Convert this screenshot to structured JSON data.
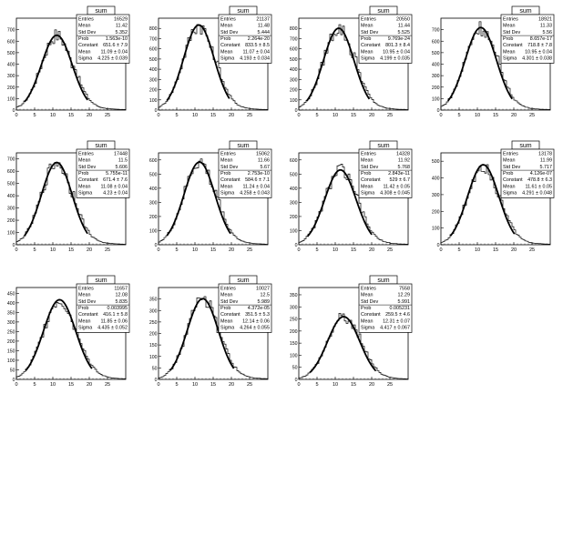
{
  "common": {
    "hist_name": "sum",
    "x_ticks": [
      0,
      5,
      10,
      15,
      20,
      25
    ],
    "stat_labels": [
      "Entries",
      "Mean",
      "Std Dev",
      "Prob",
      "Constant",
      "Mean",
      "Sigma"
    ]
  },
  "chart_data": [
    {
      "type": "bar",
      "title": "sum",
      "xlim": [
        0,
        30
      ],
      "ylim": [
        0,
        800
      ],
      "yticks": [
        0,
        100,
        200,
        300,
        400,
        500,
        600,
        700
      ],
      "fit": {
        "constant": 651.6,
        "mean": 11.09,
        "sigma": 4.225
      },
      "stats": [
        "16529",
        "11.42",
        "5.352",
        "1.563e-10",
        "651.6 ± 7.9",
        "11.09 ± 0.04",
        "4.225 ± 0.039"
      ]
    },
    {
      "type": "bar",
      "title": "sum",
      "xlim": [
        0,
        30
      ],
      "ylim": [
        0,
        900
      ],
      "yticks": [
        0,
        100,
        200,
        300,
        400,
        500,
        600,
        700,
        800
      ],
      "fit": {
        "constant": 833.5,
        "mean": 11.07,
        "sigma": 4.193
      },
      "stats": [
        "21137",
        "11.48",
        "5.444",
        "2.264e-20",
        "833.5 ± 8.5",
        "11.07 ± 0.04",
        "4.193 ± 0.034"
      ]
    },
    {
      "type": "bar",
      "title": "sum",
      "xlim": [
        0,
        30
      ],
      "ylim": [
        0,
        900
      ],
      "yticks": [
        0,
        100,
        200,
        300,
        400,
        500,
        600,
        700,
        800
      ],
      "fit": {
        "constant": 801.3,
        "mean": 10.95,
        "sigma": 4.199
      },
      "stats": [
        "20550",
        "11.44",
        "5.525",
        "9.769e-24",
        "801.3 ± 8.4",
        "10.95 ± 0.04",
        "4.199 ± 0.035"
      ]
    },
    {
      "type": "bar",
      "title": "sum",
      "xlim": [
        0,
        30
      ],
      "ylim": [
        0,
        800
      ],
      "yticks": [
        0,
        100,
        200,
        300,
        400,
        500,
        600,
        700
      ],
      "fit": {
        "constant": 718.8,
        "mean": 10.95,
        "sigma": 4.301
      },
      "stats": [
        "18921",
        "11.33",
        "5.56",
        "8.657e-17",
        "718.8 ± 7.8",
        "10.95 ± 0.04",
        "4.301 ± 0.038"
      ]
    },
    {
      "type": "bar",
      "title": "sum",
      "xlim": [
        0,
        30
      ],
      "ylim": [
        0,
        750
      ],
      "yticks": [
        0,
        100,
        200,
        300,
        400,
        500,
        600,
        700
      ],
      "fit": {
        "constant": 671.4,
        "mean": 11.08,
        "sigma": 4.23
      },
      "stats": [
        "17448",
        "11.5",
        "5.606",
        "5.755e-11",
        "671.4 ± 7.6",
        "11.08 ± 0.04",
        "4.23 ± 0.04"
      ]
    },
    {
      "type": "bar",
      "title": "sum",
      "xlim": [
        0,
        30
      ],
      "ylim": [
        0,
        650
      ],
      "yticks": [
        0,
        100,
        200,
        300,
        400,
        500,
        600
      ],
      "fit": {
        "constant": 584.6,
        "mean": 11.24,
        "sigma": 4.258
      },
      "stats": [
        "15062",
        "11.66",
        "5.67",
        "2.753e-10",
        "584.6 ± 7.1",
        "11.24 ± 0.04",
        "4.258 ± 0.043"
      ]
    },
    {
      "type": "bar",
      "title": "sum",
      "xlim": [
        0,
        30
      ],
      "ylim": [
        0,
        650
      ],
      "yticks": [
        0,
        100,
        200,
        300,
        400,
        500,
        600
      ],
      "fit": {
        "constant": 529,
        "mean": 11.42,
        "sigma": 4.308
      },
      "stats": [
        "14328",
        "11.92",
        "5.768",
        "2.843e-11",
        "529 ± 6.7",
        "11.42 ± 0.05",
        "4.308 ± 0.045"
      ]
    },
    {
      "type": "bar",
      "title": "sum",
      "xlim": [
        0,
        30
      ],
      "ylim": [
        0,
        550
      ],
      "yticks": [
        0,
        100,
        200,
        300,
        400,
        500
      ],
      "fit": {
        "constant": 478.8,
        "mean": 11.61,
        "sigma": 4.291
      },
      "stats": [
        "13178",
        "11.99",
        "5.717",
        "4.126e-07",
        "478.8 ± 6.3",
        "11.61 ± 0.05",
        "4.291 ± 0.048"
      ]
    },
    {
      "type": "bar",
      "title": "sum",
      "xlim": [
        0,
        30
      ],
      "ylim": [
        0,
        480
      ],
      "yticks": [
        0,
        50,
        100,
        150,
        200,
        250,
        300,
        350,
        400,
        450
      ],
      "fit": {
        "constant": 416.1,
        "mean": 11.85,
        "sigma": 4.435
      },
      "stats": [
        "11657",
        "12.08",
        "5.835",
        "0.003995",
        "416.1 ± 5.8",
        "11.85 ± 0.06",
        "4.435 ± 0.052"
      ]
    },
    {
      "type": "bar",
      "title": "sum",
      "xlim": [
        0,
        30
      ],
      "ylim": [
        0,
        400
      ],
      "yticks": [
        0,
        50,
        100,
        150,
        200,
        250,
        300,
        350
      ],
      "fit": {
        "constant": 351.5,
        "mean": 12.14,
        "sigma": 4.264
      },
      "stats": [
        "10027",
        "12.5",
        "5.989",
        "4.372e-05",
        "351.5 ± 5.3",
        "12.14 ± 0.06",
        "4.264 ± 0.055"
      ]
    },
    {
      "type": "bar",
      "title": "sum",
      "xlim": [
        0,
        30
      ],
      "ylim": [
        0,
        380
      ],
      "yticks": [
        0,
        50,
        100,
        150,
        200,
        250,
        300,
        350
      ],
      "fit": {
        "constant": 259.5,
        "mean": 12.31,
        "sigma": 4.417
      },
      "stats": [
        "7558",
        "12.29",
        "5.991",
        "0.005231",
        "259.5 ± 4.6",
        "12.31 ± 0.07",
        "4.417 ± 0.067"
      ]
    }
  ]
}
